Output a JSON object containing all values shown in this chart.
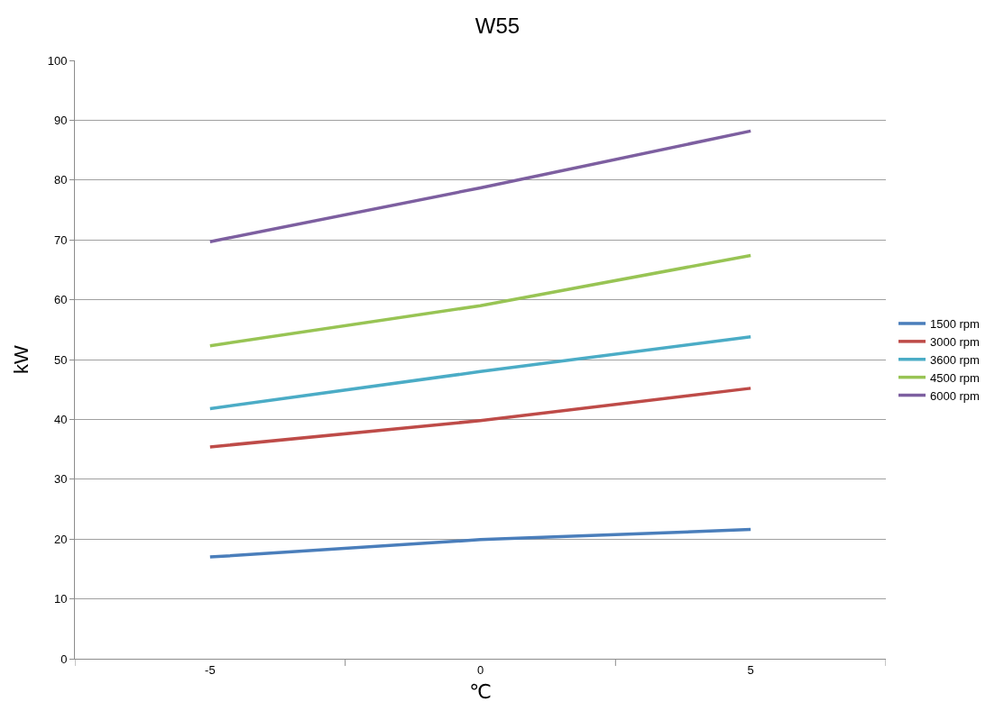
{
  "chart_data": {
    "type": "line",
    "title": "W55",
    "xlabel": "℃",
    "ylabel": "kW",
    "categories": [
      "-5",
      "0",
      "5"
    ],
    "series": [
      {
        "name": "1500 rpm",
        "color": "#4a7ebb",
        "values": [
          17.0,
          19.9,
          21.6
        ]
      },
      {
        "name": "3000 rpm",
        "color": "#be4b48",
        "values": [
          35.4,
          39.8,
          45.2
        ]
      },
      {
        "name": "3600 rpm",
        "color": "#4bacc6",
        "values": [
          41.8,
          48.0,
          53.8
        ]
      },
      {
        "name": "4500 rpm",
        "color": "#98c454",
        "values": [
          52.3,
          59.0,
          67.4
        ]
      },
      {
        "name": "6000 rpm",
        "color": "#7d5fa0",
        "values": [
          69.7,
          78.7,
          88.2
        ]
      }
    ],
    "ylim": [
      0,
      100
    ],
    "yticks": [
      0,
      10,
      20,
      30,
      40,
      50,
      60,
      70,
      80,
      90,
      100
    ],
    "grid": "y",
    "legend": "right",
    "marker": "none",
    "line_style": "solid"
  }
}
